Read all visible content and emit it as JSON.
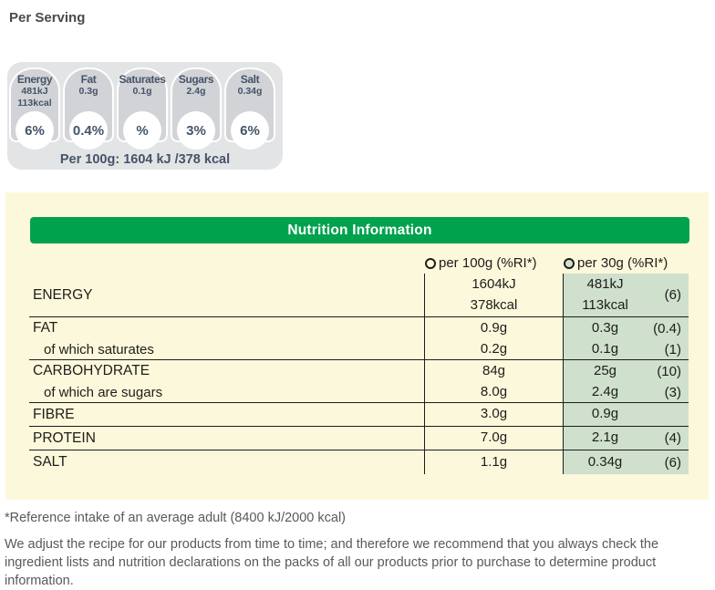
{
  "page": {
    "heading": "Per Serving"
  },
  "colors": {
    "green": "#00A24E",
    "panel_yellow": "#FCF8DB",
    "column_green": "#CFE0CC",
    "strip_gray": "#E3E4E6",
    "badge_gray": "#D2D3D6",
    "navy": "#445469",
    "text_dark": "#1D1D1B",
    "muted_gray": "#58595B"
  },
  "traffic_lights": {
    "badges": [
      {
        "label": "Energy",
        "lines": [
          "481kJ",
          "113kcal"
        ],
        "percent": "6%"
      },
      {
        "label": "Fat",
        "lines": [
          "0.3g"
        ],
        "percent": "0.4%"
      },
      {
        "label": "Saturates",
        "lines": [
          "0.1g"
        ],
        "percent": "%"
      },
      {
        "label": "Sugars",
        "lines": [
          "2.4g"
        ],
        "percent": "3%"
      },
      {
        "label": "Salt",
        "lines": [
          "0.34g"
        ],
        "percent": "6%"
      }
    ],
    "per_100g_note": "Per 100g: 1604 kJ /378 kcal"
  },
  "nutrition_table": {
    "title": "Nutrition Information",
    "columns": [
      {
        "label": "per 100g (%RI*)",
        "selected": false
      },
      {
        "label": "per 30g (%RI*)",
        "selected": true
      }
    ],
    "rows": [
      {
        "label": "ENERGY",
        "indent": false,
        "per100g": [
          "1604kJ",
          "378kcal"
        ],
        "per30g": [
          "481kJ",
          "113kcal"
        ],
        "ri": "(6)",
        "divider": true
      },
      {
        "label": "FAT",
        "indent": false,
        "per100g": [
          "0.9g"
        ],
        "per30g": [
          "0.3g"
        ],
        "ri": "(0.4)",
        "divider": false
      },
      {
        "label": "of which saturates",
        "indent": true,
        "per100g": [
          "0.2g"
        ],
        "per30g": [
          "0.1g"
        ],
        "ri": "(1)",
        "divider": true
      },
      {
        "label": "CARBOHYDRATE",
        "indent": false,
        "per100g": [
          "84g"
        ],
        "per30g": [
          "25g"
        ],
        "ri": "(10)",
        "divider": false
      },
      {
        "label": "of which are sugars",
        "indent": true,
        "per100g": [
          "8.0g"
        ],
        "per30g": [
          "2.4g"
        ],
        "ri": "(3)",
        "divider": true
      },
      {
        "label": "FIBRE",
        "indent": false,
        "per100g": [
          "3.0g"
        ],
        "per30g": [
          "0.9g"
        ],
        "ri": "",
        "divider": true
      },
      {
        "label": "PROTEIN",
        "indent": false,
        "per100g": [
          "7.0g"
        ],
        "per30g": [
          "2.1g"
        ],
        "ri": "(4)",
        "divider": true
      },
      {
        "label": "SALT",
        "indent": false,
        "per100g": [
          "1.1g"
        ],
        "per30g": [
          "0.34g"
        ],
        "ri": "(6)",
        "divider": false
      }
    ]
  },
  "footnotes": {
    "reference_intake": "*Reference intake of an average adult (8400 kJ/2000 kcal)",
    "disclaimer": "We adjust the recipe for our products from time to time; and therefore we recommend that you always check the ingredient lists and nutrition declarations on the packs of all our products prior to purchase to determine product information."
  }
}
